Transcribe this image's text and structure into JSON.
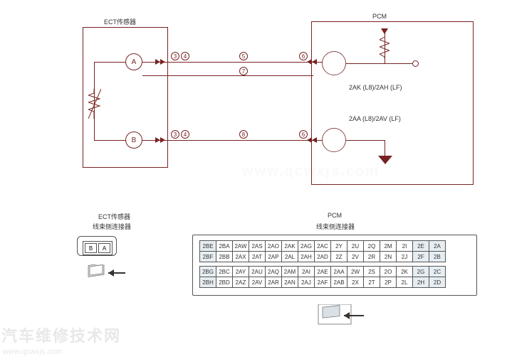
{
  "diagram": {
    "ect_sensor_label": "ECT传感器",
    "pcm_label": "PCM",
    "ect_connector_label_1": "ECT传感器",
    "ect_connector_label_2": "线束侧连接器",
    "pcm_connector_label_1": "PCM",
    "pcm_connector_label_2": "线束侧连接器",
    "port_a": "A",
    "port_b": "B",
    "pin_upper": "2AK (L8)/2AH (LF)",
    "pin_lower": "2AA (L8)/2AV (LF)",
    "n3": "3",
    "n4": "4",
    "n5": "5",
    "n6": "6",
    "n7": "7",
    "n8": "8",
    "mini_a": "A",
    "mini_b": "B",
    "colors": {
      "wire": "#722222",
      "box": "#722222",
      "text": "#333333",
      "watermark": "#e8e8e8",
      "table_border": "#555555"
    }
  },
  "connector": {
    "rows": [
      [
        "2BE",
        "2BA",
        "2AW",
        "2AS",
        "2AO",
        "2AK",
        "2AG",
        "2AC",
        "2Y",
        "2U",
        "2Q",
        "2M",
        "2I",
        "2E",
        "2A"
      ],
      [
        "2BF",
        "2BB",
        "2AX",
        "2AT",
        "2AP",
        "2AL",
        "2AH",
        "2AD",
        "2Z",
        "2V",
        "2R",
        "2N",
        "2J",
        "2F",
        "2B"
      ],
      [
        "2BG",
        "2BC",
        "2AY",
        "2AU",
        "2AQ",
        "2AM",
        "2AI",
        "2AE",
        "2AA",
        "2W",
        "2S",
        "2O",
        "2K",
        "2G",
        "2C"
      ],
      [
        "2BH",
        "2BD",
        "2AZ",
        "2AV",
        "2AR",
        "2AN",
        "2AJ",
        "2AF",
        "2AB",
        "2X",
        "2T",
        "2P",
        "2L",
        "2H",
        "2D"
      ]
    ],
    "highlighted": [
      "2BE",
      "2BF",
      "2BG",
      "2BH",
      "2E",
      "2A",
      "2F",
      "2B",
      "2G",
      "2C",
      "2H",
      "2D"
    ]
  },
  "watermark": {
    "line1": "汽车维修技术网",
    "line2": "www.qcwxjs.com"
  }
}
